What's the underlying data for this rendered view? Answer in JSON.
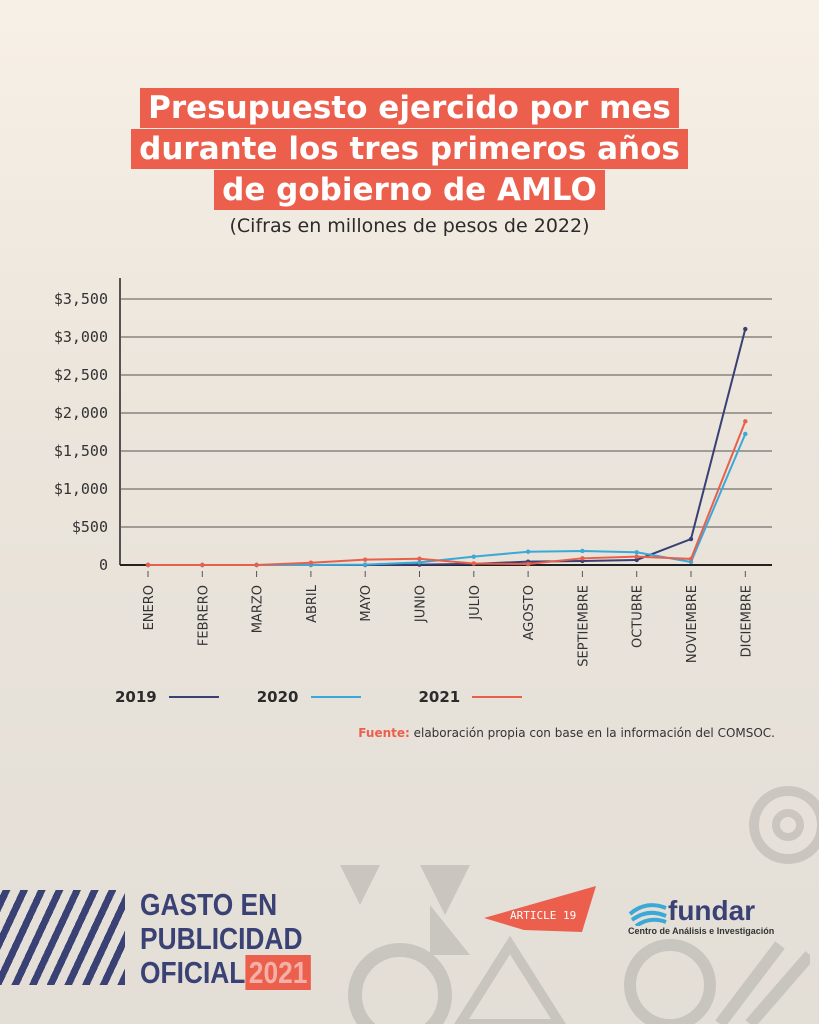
{
  "title_lines": [
    "Presupuesto ejercido por mes",
    "durante los tres primeros años",
    "de gobierno de AMLO"
  ],
  "subtitle": "(Cifras en millones de pesos de 2022)",
  "chart_data": {
    "type": "line",
    "title": "Presupuesto ejercido por mes durante los tres primeros años de gobierno de AMLO",
    "subtitle": "(Cifras en millones de pesos de 2022)",
    "categories": [
      "ENERO",
      "FEBRERO",
      "MARZO",
      "ABRIL",
      "MAYO",
      "JUNIO",
      "JULIO",
      "AGOSTO",
      "SEPTIEMBRE",
      "OCTUBRE",
      "NOVIEMBRE",
      "DICIEMBRE"
    ],
    "y_ticks": [
      "0",
      "$500",
      "$1,000",
      "$1,500",
      "$2,000",
      "$2,500",
      "$3,000",
      "$3,500"
    ],
    "ylim": [
      0,
      3500
    ],
    "grid": "horizontal",
    "legend_placement": "bottom-left",
    "series": [
      {
        "name": "2019",
        "color": "#3a3f74",
        "values": [
          0,
          0,
          0,
          0,
          0,
          5,
          15,
          44,
          53,
          66,
          342,
          3105
        ]
      },
      {
        "name": "2020",
        "color": "#3aa9d8",
        "values": [
          0,
          0,
          0,
          0,
          5,
          35,
          110,
          175,
          185,
          167,
          40,
          1724
        ]
      },
      {
        "name": "2021",
        "color": "#e8604c",
        "values": [
          0,
          0,
          0,
          30,
          70,
          83,
          20,
          13,
          88,
          110,
          80,
          1890
        ]
      }
    ]
  },
  "source": {
    "label": "Fuente:",
    "text": " elaboración propia con base en la información del COMSOC."
  },
  "footer": {
    "campaign_lines": [
      "GASTO EN",
      "PUBLICIDAD",
      "OFICIAL"
    ],
    "campaign_year": "2021",
    "article19": "ARTICLE 19",
    "fundar_name": "fundar",
    "fundar_sub": "Centro de Análisis e Investigación"
  },
  "colors": {
    "accent": "#ec5f4d",
    "navy": "#3a4275"
  }
}
